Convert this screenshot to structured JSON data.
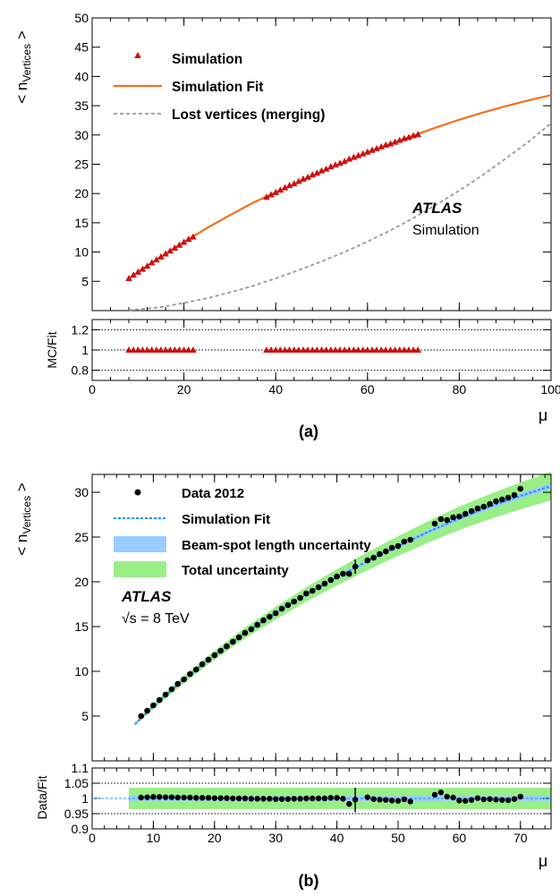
{
  "figure": {
    "panels": [
      {
        "caption": "(a)",
        "ylabel_prefix": "< n",
        "ylabel_sub": "Vertices",
        "ylabel_suffix": " >",
        "xlabel": "μ",
        "ratio_ylabel": "MC/Fit",
        "atlas": "ATLAS",
        "atlas_sub": "Simulation"
      },
      {
        "caption": "(b)",
        "ylabel_prefix": "< n",
        "ylabel_sub": "Vertices",
        "ylabel_suffix": " >",
        "xlabel": "μ",
        "ratio_ylabel": "Data/Fit",
        "atlas": "ATLAS",
        "atlas_sub": "√s = 8 TeV"
      }
    ]
  },
  "chart_data": [
    {
      "type": "scatter",
      "title": "",
      "xlim": [
        0,
        100
      ],
      "ylim": [
        0,
        50
      ],
      "xticks": [
        0,
        20,
        40,
        60,
        80,
        100
      ],
      "yticks": [
        5,
        10,
        15,
        20,
        25,
        30,
        35,
        40,
        45,
        50
      ],
      "legend_position": "top-left",
      "legend": [
        "Simulation",
        "Simulation Fit",
        "Lost vertices (merging)"
      ],
      "colors": {
        "simulation": "#cc1111",
        "fit": "#f26f1f",
        "lost": "#999999"
      },
      "series": [
        {
          "name": "Simulation",
          "marker": "triangle",
          "x": [
            8,
            9,
            10,
            11,
            12,
            13,
            14,
            15,
            16,
            17,
            18,
            19,
            20,
            21,
            22,
            38,
            39,
            40,
            41,
            42,
            43,
            44,
            45,
            46,
            47,
            48,
            49,
            50,
            51,
            52,
            53,
            54,
            55,
            56,
            57,
            58,
            59,
            60,
            61,
            62,
            63,
            64,
            65,
            66,
            67,
            68,
            69,
            70,
            71
          ],
          "y": [
            5.5,
            6.1,
            6.6,
            7.1,
            7.6,
            8.2,
            8.7,
            9.2,
            9.7,
            10.2,
            10.7,
            11.2,
            11.7,
            12.2,
            12.6,
            19.4,
            19.8,
            20.2,
            20.6,
            21.0,
            21.4,
            21.7,
            22.1,
            22.5,
            22.8,
            23.2,
            23.5,
            23.9,
            24.2,
            24.6,
            24.9,
            25.2,
            25.5,
            25.9,
            26.2,
            26.5,
            26.8,
            27.1,
            27.4,
            27.7,
            28.0,
            28.3,
            28.5,
            28.8,
            29.1,
            29.4,
            29.6,
            29.9,
            30.1
          ]
        },
        {
          "name": "Simulation Fit",
          "style": "line",
          "x": [
            8,
            10,
            15,
            20,
            25,
            30,
            35,
            40,
            45,
            50,
            55,
            60,
            65,
            70,
            75,
            80,
            85,
            90,
            95,
            100
          ],
          "y": [
            5.5,
            6.6,
            9.2,
            11.7,
            14.1,
            16.3,
            18.4,
            20.2,
            21.9,
            23.7,
            25.4,
            27.0,
            28.5,
            29.9,
            31.3,
            32.6,
            33.8,
            34.9,
            35.9,
            36.8
          ]
        },
        {
          "name": "Lost vertices (merging)",
          "style": "dashed",
          "x": [
            8,
            10,
            15,
            20,
            25,
            30,
            35,
            40,
            45,
            50,
            55,
            60,
            65,
            70,
            75,
            80,
            85,
            90,
            95,
            100
          ],
          "y": [
            0.1,
            0.2,
            0.6,
            1.3,
            2.1,
            3.1,
            4.2,
            5.5,
            6.9,
            8.4,
            10.0,
            11.8,
            13.7,
            15.8,
            18.1,
            20.5,
            23.1,
            25.9,
            28.8,
            32.0
          ]
        }
      ],
      "ratio": {
        "ylim": [
          0.7,
          1.3
        ],
        "yticks": [
          0.8,
          1,
          1.2
        ],
        "ytick_labels": [
          "0.8",
          "1",
          "1.2"
        ],
        "reference_lines": [
          0.8,
          1.0,
          1.2
        ],
        "x": [
          8,
          9,
          10,
          11,
          12,
          13,
          14,
          15,
          16,
          17,
          18,
          19,
          20,
          21,
          22,
          38,
          39,
          40,
          41,
          42,
          43,
          44,
          45,
          46,
          47,
          48,
          49,
          50,
          51,
          52,
          53,
          54,
          55,
          56,
          57,
          58,
          59,
          60,
          61,
          62,
          63,
          64,
          65,
          66,
          67,
          68,
          69,
          70,
          71
        ],
        "y": [
          1,
          1,
          1,
          1,
          1,
          1,
          1,
          1,
          1,
          1,
          1,
          1,
          1,
          1,
          1,
          1,
          1,
          1,
          1,
          1,
          1,
          1,
          1,
          1,
          1,
          1,
          1,
          1,
          1,
          1,
          1,
          1,
          1,
          1,
          1,
          1,
          1,
          1,
          1,
          1,
          1,
          1,
          1,
          1,
          1,
          1,
          1,
          1,
          1
        ]
      }
    },
    {
      "type": "scatter",
      "title": "",
      "xlim": [
        0,
        75
      ],
      "ylim": [
        0,
        32
      ],
      "xticks": [
        0,
        10,
        20,
        30,
        40,
        50,
        60,
        70
      ],
      "yticks": [
        5,
        10,
        15,
        20,
        25,
        30
      ],
      "legend_position": "top-left",
      "legend": [
        "Data 2012",
        "Simulation Fit",
        "Beam-spot length uncertainty",
        "Total uncertainty"
      ],
      "colors": {
        "data": "#000000",
        "fit": "#1e90ff",
        "beamspot": "#99ccff",
        "total": "#99ee88"
      },
      "series": [
        {
          "name": "Data 2012",
          "marker": "circle",
          "x": [
            8,
            9,
            10,
            11,
            12,
            13,
            14,
            15,
            16,
            17,
            18,
            19,
            20,
            21,
            22,
            23,
            24,
            25,
            26,
            27,
            28,
            29,
            30,
            31,
            32,
            33,
            34,
            35,
            36,
            37,
            38,
            39,
            40,
            41,
            42,
            43,
            45,
            46,
            47,
            48,
            49,
            50,
            51,
            52,
            56,
            57,
            58,
            59,
            60,
            61,
            62,
            63,
            64,
            65,
            66,
            67,
            68,
            69,
            70
          ],
          "y": [
            5.0,
            5.6,
            6.2,
            6.8,
            7.4,
            8.0,
            8.6,
            9.1,
            9.7,
            10.2,
            10.8,
            11.3,
            11.8,
            12.3,
            12.8,
            13.3,
            13.8,
            14.3,
            14.7,
            15.2,
            15.7,
            16.1,
            16.5,
            17.0,
            17.4,
            17.8,
            18.2,
            18.7,
            19.0,
            19.4,
            19.8,
            20.2,
            20.6,
            20.9,
            20.9,
            21.7,
            22.4,
            22.7,
            23.1,
            23.4,
            23.8,
            24.0,
            24.5,
            24.7,
            26.5,
            27.0,
            26.9,
            27.2,
            27.3,
            27.6,
            27.9,
            28.2,
            28.4,
            28.7,
            29.0,
            29.2,
            29.4,
            29.7,
            30.4
          ]
        },
        {
          "name": "Simulation Fit",
          "style": "dashed",
          "x": [
            7,
            10,
            15,
            20,
            25,
            30,
            35,
            40,
            45,
            50,
            55,
            60,
            65,
            70,
            75
          ],
          "y": [
            4.1,
            6.1,
            9.1,
            11.8,
            14.3,
            16.5,
            18.6,
            20.5,
            22.3,
            24.0,
            25.6,
            27.1,
            28.4,
            29.6,
            30.7
          ]
        }
      ],
      "bands": {
        "total_halfwidth": [
          0.2,
          0.3,
          0.4,
          0.5,
          0.6,
          0.7,
          0.8,
          0.9,
          1.0,
          1.1,
          1.2,
          1.3,
          1.4,
          1.5,
          1.6
        ],
        "beamspot_halfwidth": [
          0.05,
          0.06,
          0.08,
          0.1,
          0.12,
          0.14,
          0.16,
          0.18,
          0.2,
          0.22,
          0.24,
          0.26,
          0.28,
          0.3,
          0.32
        ]
      },
      "ratio": {
        "ylim": [
          0.9,
          1.1
        ],
        "yticks": [
          0.9,
          0.95,
          1,
          1.05,
          1.1
        ],
        "ytick_labels": [
          "0.9",
          "0.95",
          "1",
          "1.05",
          "1.1"
        ],
        "reference_lines": [
          0.95,
          1.0,
          1.05
        ],
        "total_band": [
          0.965,
          1.035
        ],
        "beamspot_band": [
          0.992,
          1.008
        ],
        "band_xrange": [
          6,
          75
        ],
        "x": [
          8,
          9,
          10,
          11,
          12,
          13,
          14,
          15,
          16,
          17,
          18,
          19,
          20,
          21,
          22,
          23,
          24,
          25,
          26,
          27,
          28,
          29,
          30,
          31,
          32,
          33,
          34,
          35,
          36,
          37,
          38,
          39,
          40,
          41,
          42,
          43,
          45,
          46,
          47,
          48,
          49,
          50,
          51,
          52,
          56,
          57,
          58,
          59,
          60,
          61,
          62,
          63,
          64,
          65,
          66,
          67,
          68,
          69,
          70
        ],
        "y": [
          1.003,
          1.004,
          1.005,
          1.005,
          1.004,
          1.004,
          1.003,
          1.003,
          1.003,
          1.002,
          1.002,
          1.002,
          1.001,
          1.001,
          1.001,
          1.0,
          1.0,
          1.0,
          0.999,
          0.999,
          0.999,
          0.999,
          0.998,
          0.998,
          0.998,
          0.999,
          0.999,
          1.0,
          1.0,
          1.0,
          1.0,
          1.002,
          1.002,
          0.999,
          0.982,
          0.996,
          1.004,
          0.998,
          0.996,
          0.995,
          0.993,
          0.992,
          0.997,
          0.99,
          1.012,
          1.02,
          1.006,
          1.003,
          0.993,
          0.992,
          0.995,
          1.001,
          0.997,
          0.998,
          0.996,
          0.995,
          0.994,
          0.998,
          1.006
        ]
      }
    }
  ]
}
